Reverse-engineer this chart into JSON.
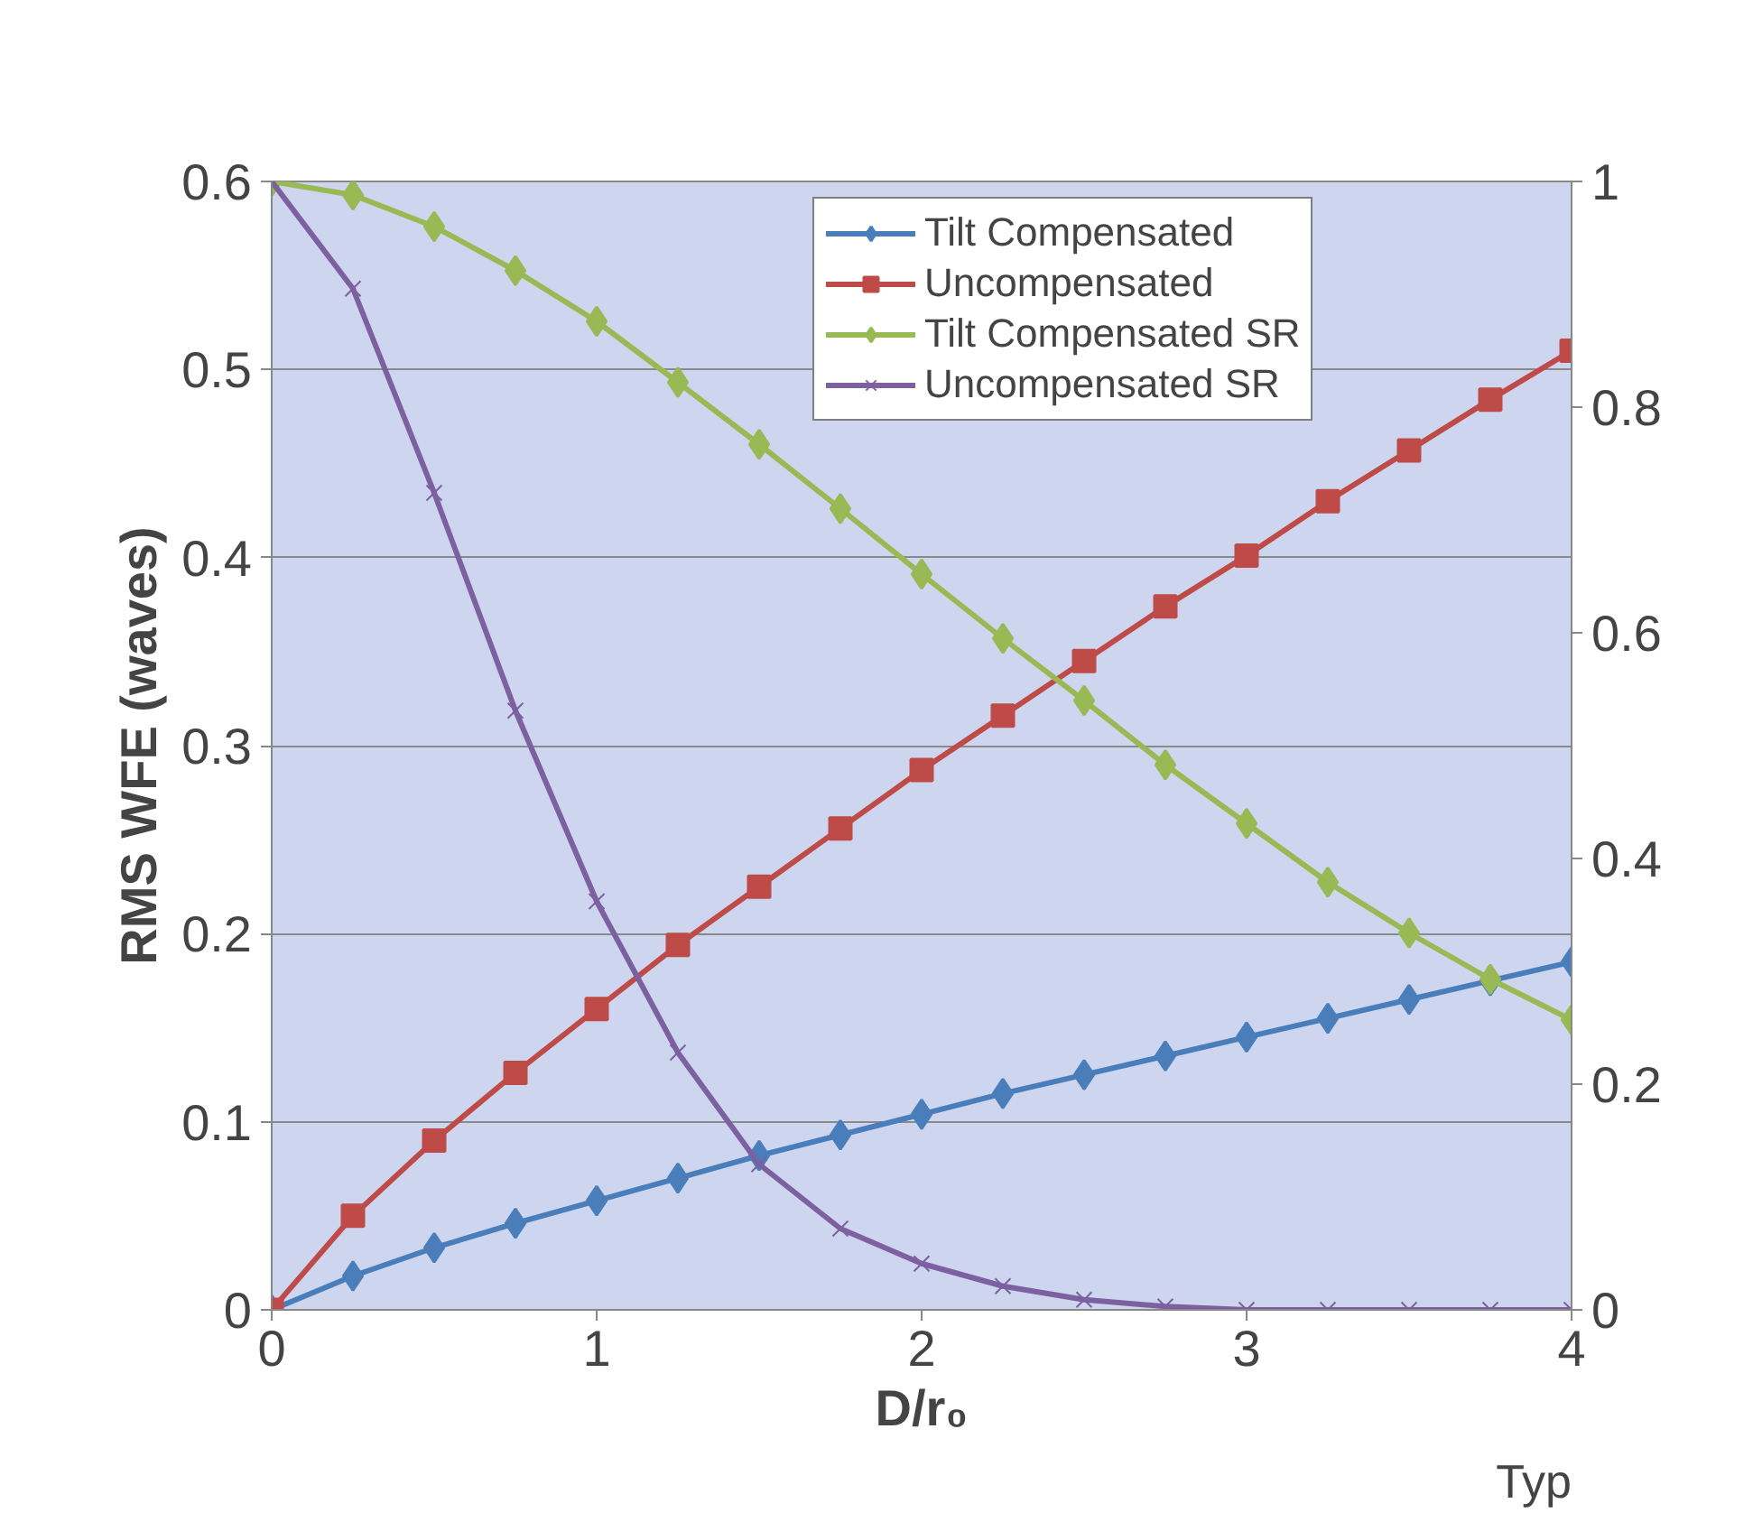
{
  "chart_data": {
    "type": "line",
    "xlabel": "D/r₀",
    "ylabel": "RMS WFE (waves)",
    "x": [
      0,
      0.25,
      0.5,
      0.75,
      1,
      1.25,
      1.5,
      1.75,
      2,
      2.25,
      2.5,
      2.75,
      3,
      3.25,
      3.5,
      3.75,
      4
    ],
    "series": [
      {
        "name": "Tilt Compensated",
        "color": "#4a7ebb",
        "marker": "diamond",
        "values": [
          0,
          0.018,
          0.033,
          0.046,
          0.058,
          0.07,
          0.082,
          0.093,
          0.104,
          0.115,
          0.125,
          0.135,
          0.145,
          0.155,
          0.165,
          0.175,
          0.185
        ]
      },
      {
        "name": "Uncompensated",
        "color": "#be4b48",
        "marker": "square",
        "values": [
          0,
          0.05,
          0.09,
          0.126,
          0.16,
          0.194,
          0.225,
          0.256,
          0.287,
          0.316,
          0.345,
          0.374,
          0.401,
          0.43,
          0.457,
          0.484,
          0.51
        ]
      },
      {
        "name": "Tilt Compensated SR",
        "color": "#98b954",
        "marker": "diamond",
        "axis": "y2",
        "values": [
          1,
          0.988,
          0.96,
          0.921,
          0.876,
          0.822,
          0.767,
          0.71,
          0.652,
          0.595,
          0.54,
          0.483,
          0.431,
          0.379,
          0.334,
          0.293,
          0.257
        ]
      },
      {
        "name": "Uncompensated SR",
        "color": "#7d60a0",
        "marker": "cross",
        "axis": "y2",
        "values": [
          1,
          0.905,
          0.724,
          0.531,
          0.362,
          0.228,
          0.129,
          0.072,
          0.041,
          0.021,
          0.009,
          0.003,
          0,
          0,
          0,
          0,
          0
        ]
      }
    ],
    "xlim": [
      0,
      4
    ],
    "xticks": [
      0,
      1,
      2,
      3,
      4
    ],
    "ylim": [
      0,
      0.6
    ],
    "yticks": [
      0,
      0.1,
      0.2,
      0.3,
      0.4,
      0.5,
      0.6
    ],
    "y2lim": [
      0,
      1
    ],
    "y2ticks": [
      0,
      0.2,
      0.4,
      0.6,
      0.8,
      1
    ],
    "grid": "y",
    "legend": "top",
    "line_style": "solid",
    "annotations": [
      "Typ"
    ]
  }
}
